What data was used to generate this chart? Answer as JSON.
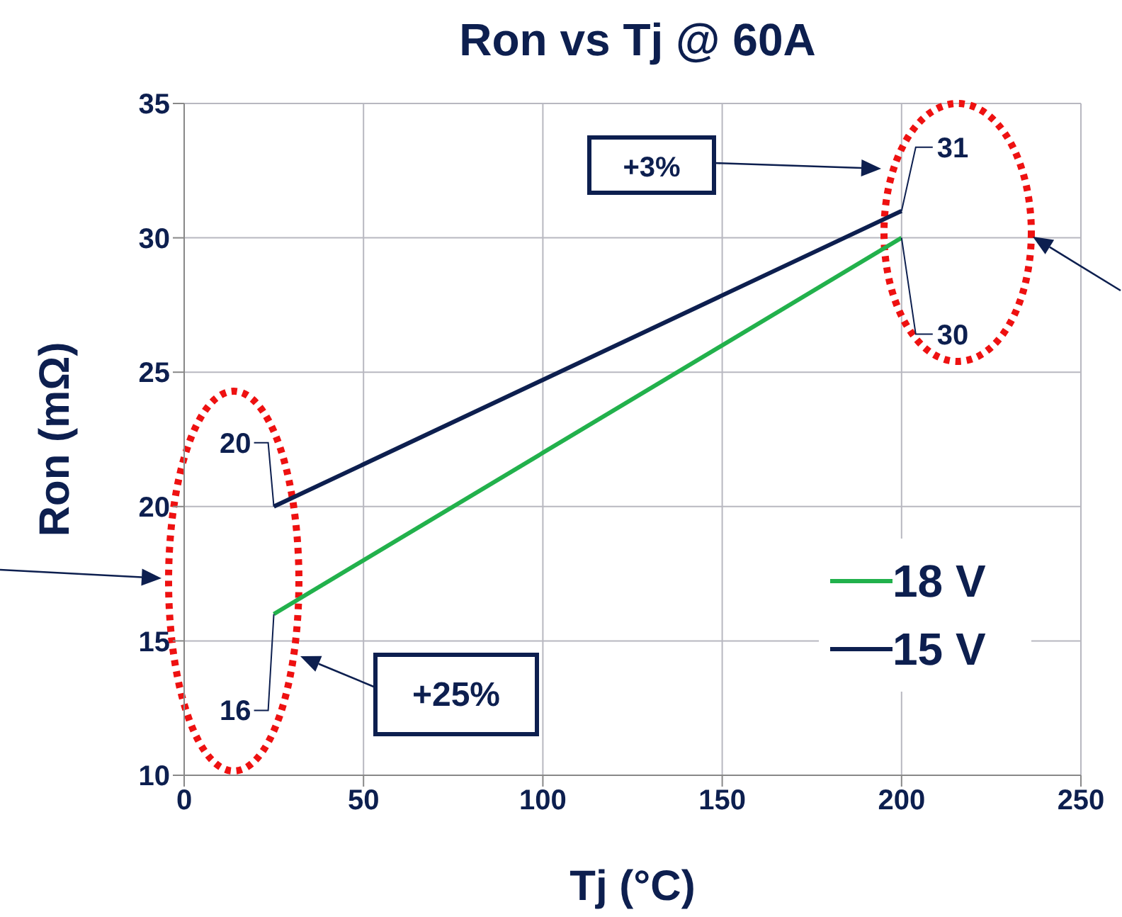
{
  "chart_data": {
    "type": "line",
    "title": "Ron vs Tj @ 60A",
    "xlabel": "Tj (°C)",
    "ylabel": "Ron (mΩ)",
    "x": [
      25,
      200
    ],
    "series": [
      {
        "name": "18 V",
        "color": "#22b14c",
        "values": [
          16,
          30
        ]
      },
      {
        "name": "15 V",
        "color": "#0d1f4f",
        "values": [
          20,
          31
        ]
      }
    ],
    "xlim": [
      0,
      250
    ],
    "xticks": [
      0,
      50,
      100,
      150,
      200,
      250
    ],
    "ylim": [
      10,
      35
    ],
    "yticks": [
      10,
      15,
      20,
      25,
      30,
      35
    ],
    "grid": true,
    "legend": "right",
    "marker": "none",
    "line_style": "solid",
    "data_labels": true,
    "annotations": [
      "+3%",
      "+25%"
    ]
  }
}
